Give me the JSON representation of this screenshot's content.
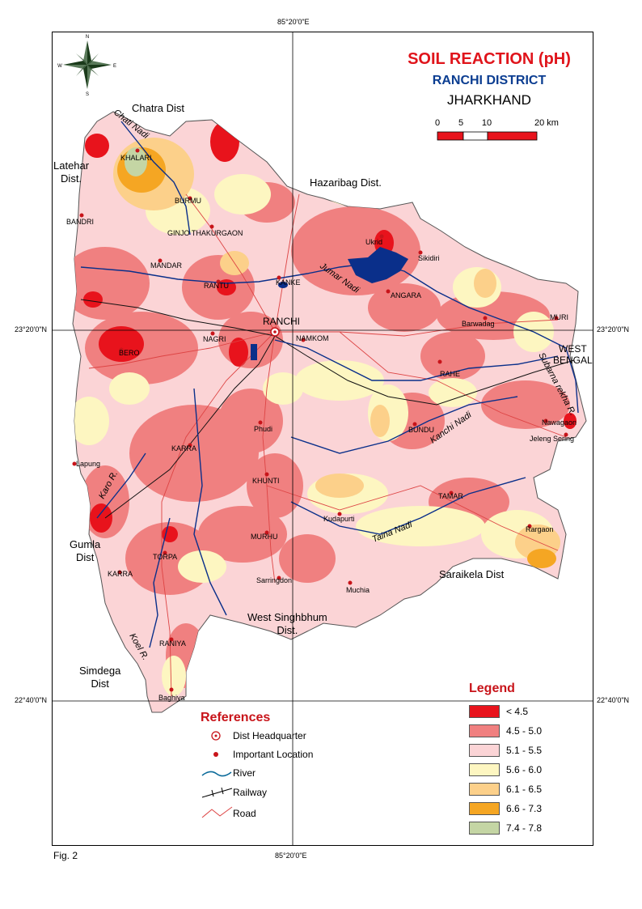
{
  "title": {
    "main": "SOIL REACTION (pH)",
    "district": "RANCHI DISTRICT",
    "state": "JHARKHAND"
  },
  "scale_bar": {
    "ticks": [
      "0",
      "5",
      "10",
      "20 km"
    ]
  },
  "compass": {
    "icon": "compass-rose-icon",
    "labels": [
      "N",
      "S",
      "E",
      "W"
    ]
  },
  "coordinates": {
    "top_meridian": "85°20'0\"E",
    "bottom_meridian": "85°20'0\"E",
    "lat_upper_left": "23°20'0\"N",
    "lat_upper_right": "23°20'0\"N",
    "lat_lower_left": "22°40'0\"N",
    "lat_lower_right": "22°40'0\"N"
  },
  "neighbours": {
    "chatra": "Chatra Dist",
    "latehar": "Latehar\nDist.",
    "hazaribag": "Hazaribag Dist.",
    "west_bengal": "WEST\nBENGAL",
    "gumla": "Gumla\nDist",
    "saraikela": "Saraikela Dist",
    "west_singhbhum": "West Singhbhum\nDist.",
    "simdega": "Simdega\nDist"
  },
  "places": {
    "khalari": "KHALARI",
    "burmu": "BURMU",
    "bandri": "BANDRI",
    "ginjo": "GINJO THAKURGAON",
    "mandar": "MANDAR",
    "kanke": "KANKE",
    "rantu": "RANTU",
    "ormanjhi": "Ukrid",
    "sikidiri": "Sikidiri",
    "angara": "ANGARA",
    "ranchi": "RANCHI",
    "namkom": "NAMKOM",
    "barwadag": "Barwadag",
    "muri": "MURI",
    "bero": "BERO",
    "nagri": "NAGRI",
    "rahe": "RAHE",
    "phudi": "Phudi",
    "bundu": "BUNDU",
    "nawagaon": "Nawagaon",
    "jeleng": "Jeleng Sering",
    "karra1": "KARRA",
    "lapung": "Lapung",
    "khunti": "KHUNTI",
    "tamar": "TAMAR",
    "kudapurti": "Kudapurti",
    "rargaon": "Rargaon",
    "murhu": "MURHU",
    "torpa": "TORPA",
    "karra2": "KARRA",
    "saringdon": "Sarringdon",
    "muchia": "Muchia",
    "raniya": "RANIYA",
    "baghiya": "Baghiya"
  },
  "rivers": {
    "chati": "Chati Nadi",
    "jumar": "Jumar Nadi",
    "kanchi": "Kanchi Nadi",
    "taina": "Taina Nadi",
    "subarnarekha": "Subarna rekha R.",
    "karo": "Karo R.",
    "koel": "Koel R."
  },
  "references": {
    "title": "References",
    "items": [
      {
        "label": "Dist Headquarter",
        "icon": "dist-headquarter-icon"
      },
      {
        "label": "Important Location",
        "icon": "important-location-icon"
      },
      {
        "label": "River",
        "icon": "river-line-icon"
      },
      {
        "label": "Railway",
        "icon": "railway-line-icon"
      },
      {
        "label": "Road",
        "icon": "road-line-icon"
      }
    ]
  },
  "legend": {
    "title": "Legend",
    "items": [
      {
        "label": "< 4.5",
        "color": "#e8131c"
      },
      {
        "label": "4.5 - 5.0",
        "color": "#f08080"
      },
      {
        "label": "5.1 - 5.5",
        "color": "#fbd4d6"
      },
      {
        "label": "5.6 - 6.0",
        "color": "#fdf6c1"
      },
      {
        "label": "6.1 - 6.5",
        "color": "#fcd08a"
      },
      {
        "label": "6.6 - 7.3",
        "color": "#f5a623"
      },
      {
        "label": "7.4 - 7.8",
        "color": "#c4d5a4"
      }
    ]
  },
  "figure_label": "Fig. 2"
}
